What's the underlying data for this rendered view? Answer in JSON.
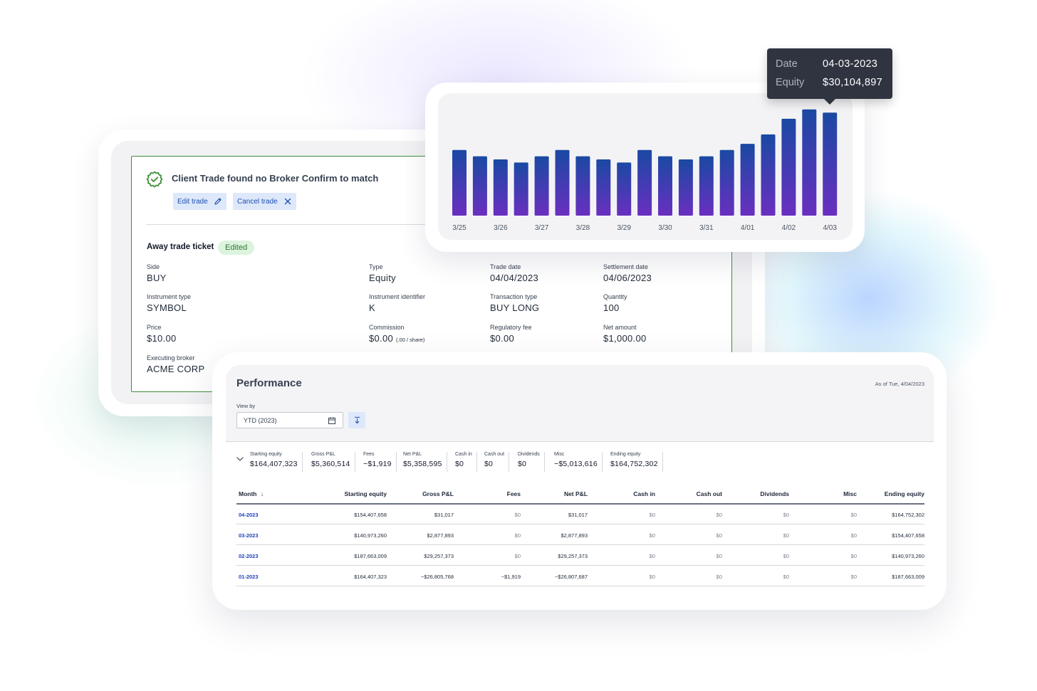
{
  "trade": {
    "alert_title": "Client Trade found no Broker Confirm to match",
    "edit_label": "Edit trade",
    "cancel_label": "Cancel trade",
    "ticket_title": "Away trade ticket",
    "edited_badge": "Edited",
    "fields": {
      "side": {
        "label": "Side",
        "value": "BUY"
      },
      "type": {
        "label": "Type",
        "value": "Equity"
      },
      "trade_date": {
        "label": "Trade date",
        "value": "04/04/2023"
      },
      "settlement_date": {
        "label": "Settlement date",
        "value": "04/06/2023"
      },
      "instrument_type": {
        "label": "Instrument type",
        "value": "SYMBOL"
      },
      "instrument_identifier": {
        "label": "Instrument identifier",
        "value": "K"
      },
      "transaction_type": {
        "label": "Transaction type",
        "value": "BUY LONG"
      },
      "quantity": {
        "label": "Quantity",
        "value": "100"
      },
      "price": {
        "label": "Price",
        "value": "$10.00"
      },
      "commission": {
        "label": "Commission",
        "value": "$0.00",
        "note": "(.00 / share)"
      },
      "regulatory_fee": {
        "label": "Regulatory fee",
        "value": "$0.00"
      },
      "net_amount": {
        "label": "Net amount",
        "value": "$1,000.00"
      },
      "executing_broker": {
        "label": "Executing broker",
        "value": "ACME CORP"
      }
    },
    "colors": {
      "success": "#3f8f3a",
      "accent": "#1e4fb0"
    }
  },
  "tooltip": {
    "date_label": "Date",
    "date_value": "04-03-2023",
    "equity_label": "Equity",
    "equity_value": "$30,104,897"
  },
  "chart_data": {
    "type": "bar",
    "categories": [
      "3/25",
      "",
      "3/26",
      "",
      "3/27",
      "",
      "3/28",
      "",
      "3/29",
      "",
      "3/30",
      "",
      "3/31",
      "",
      "4/01",
      "",
      "4/02",
      "",
      "4/03"
    ],
    "x_tick_labels": [
      "3/25",
      "3/26",
      "3/27",
      "3/28",
      "3/29",
      "3/30",
      "3/31",
      "4/01",
      "4/02",
      "4/03"
    ],
    "values": [
      21,
      19,
      18,
      17,
      19,
      21,
      19,
      18,
      17,
      21,
      19,
      18,
      19,
      21,
      23,
      26,
      31,
      34,
      33
    ],
    "ylim": [
      0,
      36
    ],
    "grid": false,
    "colors": {
      "bar_top": "#1a49a3",
      "bar_bottom": "#6a2fc0"
    }
  },
  "performance": {
    "title": "Performance",
    "as_of": "As of Tue, 4/04/2023",
    "view_by_label": "View by",
    "view_by_value": "YTD (2023)",
    "summary": [
      {
        "label": "Starting equity",
        "value": "$164,407,323"
      },
      {
        "label": "Gross P&L",
        "value": "$5,360,514"
      },
      {
        "label": "Fees",
        "value": "−$1,919"
      },
      {
        "label": "Net P&L",
        "value": "$5,358,595"
      },
      {
        "label": "Cash in",
        "value": "$0"
      },
      {
        "label": "Cash out",
        "value": "$0"
      },
      {
        "label": "Dividends",
        "value": "$0"
      },
      {
        "label": "Misc",
        "value": "−$5,013,616"
      },
      {
        "label": "Ending equity",
        "value": "$164,752,302"
      }
    ],
    "columns": [
      "Month",
      "Starting equity",
      "Gross P&L",
      "Fees",
      "Net P&L",
      "Cash in",
      "Cash out",
      "Dividends",
      "Misc",
      "Ending equity"
    ],
    "rows": [
      [
        "04-2023",
        "$154,407,658",
        "$31,017",
        "$0",
        "$31,017",
        "$0",
        "$0",
        "$0",
        "$0",
        "$164,752,302"
      ],
      [
        "03-2023",
        "$140,973,260",
        "$2,877,893",
        "$0",
        "$2,877,893",
        "$0",
        "$0",
        "$0",
        "$0",
        "$154,407,658"
      ],
      [
        "02-2023",
        "$187,663,009",
        "$29,257,373",
        "$0",
        "$29,257,373",
        "$0",
        "$0",
        "$0",
        "$0",
        "$140,973,260"
      ],
      [
        "01-2023",
        "$164,407,323",
        "−$26,805,768",
        "−$1,919",
        "−$26,807,687",
        "$0",
        "$0",
        "$0",
        "$0",
        "$187,663,009"
      ]
    ]
  }
}
